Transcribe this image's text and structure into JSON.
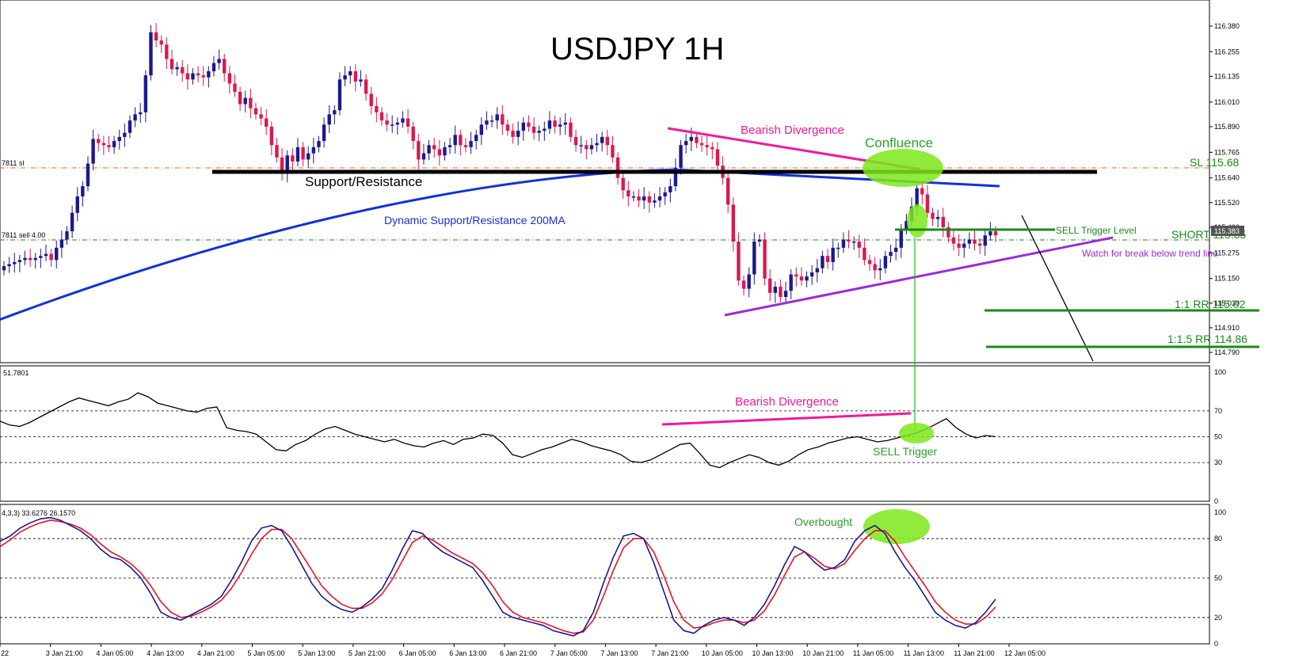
{
  "title": "USDJPY 1H",
  "colors": {
    "bull": "#1a1a8c",
    "bear": "#d9194f",
    "ma": "#1530d8",
    "black": "#000000",
    "green": "#1a8a1a",
    "lime": "#7ee81a",
    "pink": "#f0199a",
    "purple": "#9b2bd6",
    "orange": "#e8632a",
    "rsi": "#000000",
    "stochMain": "#1a1a8c",
    "stochSignal": "#e8122a"
  },
  "price_panel": {
    "axis_ticks": [
      "116.380",
      "116.255",
      "116.135",
      "116.010",
      "115.890",
      "115.765",
      "115.640",
      "115.520",
      "115.400",
      "115.275",
      "115.150",
      "115.030",
      "114.910",
      "114.790"
    ],
    "price_tag": "115.383",
    "order_labels": {
      "sl": "7811 sl",
      "sell": "7811 sell 4.00"
    },
    "annotations": {
      "support_resistance": "Support/Resistance",
      "dynamic_sr": "Dynamic Support/Resistance 200MA",
      "bearish_divergence": "Bearish Divergence",
      "confluence": "Confluence",
      "sl": "SL 115.68",
      "sell_trigger_level": "SELL Trigger Level",
      "short": "SHORT 115.35",
      "watch_break": "Watch for break below trend line",
      "rr1": "1:1 RR 115.02",
      "rr15": "1:1.5 RR 114.86"
    }
  },
  "rsi_panel": {
    "value_label": "51.7801",
    "axis_ticks": [
      "100",
      "70",
      "50",
      "30",
      "0"
    ],
    "annotations": {
      "bearish_divergence": "Bearish Divergence",
      "sell_trigger": "SELL Trigger"
    }
  },
  "stoch_panel": {
    "value_label": "4,3,3) 33.6276 26.1570",
    "axis_ticks": [
      "100",
      "80",
      "50",
      "20",
      "0"
    ],
    "annotations": {
      "overbought": "Overbought"
    }
  },
  "x_axis": {
    "labels": [
      "22",
      "3 Jan 21:00",
      "4 Jan 05:00",
      "4 Jan 13:00",
      "4 Jan 21:00",
      "5 Jan 05:00",
      "5 Jan 13:00",
      "5 Jan 21:00",
      "6 Jan 05:00",
      "6 Jan 13:00",
      "6 Jan 21:00",
      "7 Jan 05:00",
      "7 Jan 13:00",
      "7 Jan 21:00",
      "10 Jan 05:00",
      "10 Jan 13:00",
      "10 Jan 21:00",
      "11 Jan 05:00",
      "11 Jan 13:00",
      "11 Jan 21:00",
      "12 Jan 05:00"
    ]
  },
  "chart_data": [
    {
      "type": "candlestick",
      "title": "USDJPY 1H",
      "ylim": [
        114.79,
        116.43
      ],
      "close": [
        115.21,
        115.22,
        115.23,
        115.24,
        115.25,
        115.24,
        115.25,
        115.26,
        115.27,
        115.24,
        115.3,
        115.34,
        115.38,
        115.47,
        115.55,
        115.6,
        115.71,
        115.83,
        115.81,
        115.8,
        115.79,
        115.82,
        115.84,
        115.86,
        115.92,
        115.95,
        115.96,
        116.14,
        116.35,
        116.31,
        116.29,
        116.22,
        116.17,
        116.18,
        116.15,
        116.12,
        116.15,
        116.14,
        116.13,
        116.16,
        116.2,
        116.22,
        116.15,
        116.1,
        116.06,
        116.0,
        116.03,
        115.98,
        115.95,
        115.93,
        115.89,
        115.8,
        115.74,
        115.66,
        115.75,
        115.72,
        115.79,
        115.73,
        115.76,
        115.79,
        115.82,
        115.9,
        115.95,
        115.97,
        116.12,
        116.14,
        116.16,
        116.11,
        116.12,
        116.05,
        115.99,
        115.96,
        115.92,
        115.9,
        115.9,
        115.91,
        115.93,
        115.89,
        115.82,
        115.73,
        115.76,
        115.8,
        115.78,
        115.75,
        115.79,
        115.8,
        115.85,
        115.8,
        115.79,
        115.82,
        115.85,
        115.9,
        115.92,
        115.92,
        115.95,
        115.9,
        115.87,
        115.84,
        115.87,
        115.91,
        115.89,
        115.86,
        115.87,
        115.88,
        115.92,
        115.89,
        115.9,
        115.91,
        115.84,
        115.8,
        115.8,
        115.78,
        115.8,
        115.81,
        115.84,
        115.8,
        115.74,
        115.64,
        115.58,
        115.55,
        115.55,
        115.53,
        115.55,
        115.52,
        115.53,
        115.55,
        115.57,
        115.6,
        115.69,
        115.8,
        115.82,
        115.84,
        115.81,
        115.8,
        115.79,
        115.78,
        115.7,
        115.64,
        115.51,
        115.33,
        115.14,
        115.1,
        115.17,
        115.33,
        115.34,
        115.15,
        115.08,
        115.11,
        115.06,
        115.09,
        115.17,
        115.16,
        115.14,
        115.16,
        115.18,
        115.2,
        115.26,
        115.23,
        115.3,
        115.3,
        115.34,
        115.33,
        115.33,
        115.3,
        115.24,
        115.22,
        115.19,
        115.2,
        115.26,
        115.28,
        115.3,
        115.39,
        115.43,
        115.5,
        115.59,
        115.56,
        115.47,
        115.44,
        115.45,
        115.4,
        115.35,
        115.32,
        115.3,
        115.32,
        115.34,
        115.32,
        115.31,
        115.36,
        115.38,
        115.36
      ],
      "ma200": {
        "name": "Dynamic Support/Resistance 200MA",
        "start": 114.95,
        "end": 115.6
      }
    },
    {
      "type": "line",
      "name": "RSI",
      "ylim": [
        0,
        100
      ],
      "levels": [
        70,
        50,
        30
      ],
      "values": [
        62,
        59,
        58,
        61,
        65,
        69,
        73,
        77,
        80,
        78,
        76,
        74,
        77,
        79,
        84,
        81,
        76,
        74,
        72,
        70,
        69,
        72,
        73,
        57,
        55,
        54,
        52,
        46,
        40,
        39,
        44,
        47,
        52,
        56,
        58,
        55,
        52,
        50,
        48,
        46,
        48,
        45,
        43,
        42,
        45,
        47,
        44,
        48,
        49,
        52,
        51,
        45,
        36,
        34,
        37,
        40,
        42,
        45,
        48,
        46,
        43,
        41,
        39,
        36,
        31,
        30,
        32,
        36,
        40,
        44,
        45,
        37,
        28,
        26,
        30,
        33,
        36,
        34,
        30,
        28,
        31,
        36,
        40,
        42,
        45,
        47,
        49,
        50,
        48,
        46,
        47,
        49,
        51,
        53,
        56,
        60,
        64,
        57,
        52,
        49,
        51,
        50
      ]
    },
    {
      "type": "line",
      "name": "Stochastic",
      "ylim": [
        0,
        100
      ],
      "levels": [
        80,
        50,
        20
      ],
      "series": [
        {
          "name": "main",
          "values": [
            78,
            82,
            88,
            92,
            95,
            96,
            94,
            90,
            86,
            80,
            72,
            66,
            64,
            58,
            50,
            38,
            24,
            20,
            18,
            22,
            26,
            30,
            36,
            48,
            62,
            78,
            88,
            90,
            86,
            74,
            60,
            46,
            36,
            30,
            26,
            24,
            28,
            34,
            42,
            56,
            72,
            86,
            84,
            76,
            70,
            66,
            62,
            58,
            48,
            36,
            24,
            20,
            18,
            16,
            14,
            10,
            8,
            6,
            10,
            24,
            46,
            66,
            82,
            84,
            80,
            62,
            40,
            18,
            10,
            8,
            14,
            18,
            20,
            18,
            14,
            20,
            30,
            44,
            60,
            74,
            70,
            62,
            56,
            58,
            64,
            78,
            86,
            90,
            84,
            70,
            58,
            48,
            36,
            24,
            18,
            14,
            12,
            16,
            24,
            34
          ]
        },
        {
          "name": "signal",
          "values": [
            74,
            79,
            85,
            89,
            92,
            94,
            93,
            91,
            88,
            83,
            76,
            70,
            66,
            61,
            54,
            44,
            32,
            24,
            20,
            21,
            24,
            28,
            33,
            42,
            54,
            68,
            80,
            87,
            87,
            80,
            68,
            56,
            44,
            36,
            30,
            27,
            27,
            31,
            38,
            49,
            63,
            77,
            82,
            79,
            74,
            69,
            65,
            61,
            54,
            44,
            32,
            24,
            20,
            18,
            16,
            13,
            10,
            8,
            9,
            18,
            36,
            56,
            73,
            80,
            80,
            70,
            52,
            32,
            18,
            12,
            13,
            16,
            18,
            18,
            16,
            18,
            25,
            37,
            52,
            66,
            70,
            65,
            59,
            57,
            61,
            71,
            80,
            86,
            86,
            78,
            66,
            55,
            44,
            32,
            24,
            18,
            15,
            15,
            20,
            28
          ]
        }
      ]
    }
  ]
}
